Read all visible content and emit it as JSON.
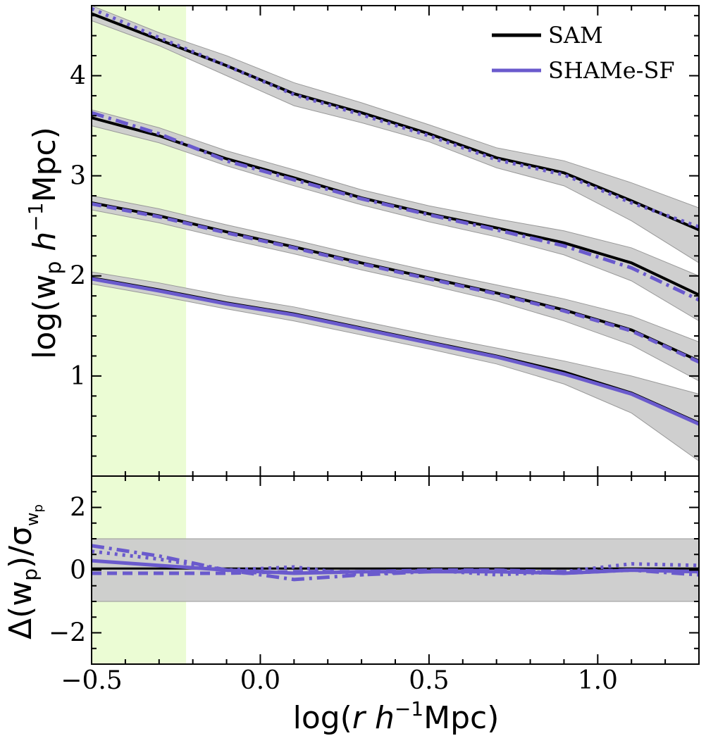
{
  "chart_data": [
    {
      "panel": "top",
      "type": "line",
      "ylabel": "log(w_p h^-1 Mpc)",
      "xlim": [
        -0.5,
        1.3
      ],
      "ylim": [
        0,
        4.7
      ],
      "yticks": [
        1,
        2,
        3,
        4
      ],
      "legend": {
        "placement": "top-right",
        "entries": [
          {
            "label": "SAM",
            "color": "#000000"
          },
          {
            "label": "SHAMe-SF",
            "color": "#6a5acd"
          }
        ]
      },
      "highlight_band_x": [
        -0.5,
        -0.22
      ],
      "x": [
        -0.5,
        -0.3,
        -0.1,
        0.1,
        0.3,
        0.5,
        0.7,
        0.9,
        1.1,
        1.3
      ],
      "series": [
        {
          "group": 1,
          "name": "SAM",
          "style": "solid",
          "values": [
            4.62,
            4.36,
            4.1,
            3.82,
            3.63,
            3.42,
            3.18,
            3.03,
            2.75,
            2.46
          ],
          "err_lo": [
            4.55,
            4.3,
            4.0,
            3.7,
            3.53,
            3.34,
            3.08,
            2.9,
            2.55,
            2.13
          ],
          "err_hi": [
            4.7,
            4.43,
            4.2,
            3.93,
            3.73,
            3.51,
            3.28,
            3.15,
            2.93,
            2.68
          ]
        },
        {
          "group": 1,
          "name": "SHAMe-SF",
          "style": "dotted",
          "values": [
            4.67,
            4.38,
            4.1,
            3.81,
            3.61,
            3.4,
            3.16,
            3.01,
            2.73,
            2.49
          ]
        },
        {
          "group": 2,
          "name": "SAM",
          "style": "solid",
          "values": [
            3.58,
            3.4,
            3.17,
            2.98,
            2.78,
            2.62,
            2.48,
            2.33,
            2.13,
            1.81
          ],
          "err_lo": [
            3.5,
            3.33,
            3.1,
            2.9,
            2.71,
            2.54,
            2.39,
            2.21,
            1.95,
            1.55
          ],
          "err_hi": [
            3.66,
            3.48,
            3.25,
            3.06,
            2.86,
            2.7,
            2.57,
            2.45,
            2.28,
            2.0
          ]
        },
        {
          "group": 2,
          "name": "SHAMe-SF",
          "style": "dashdot",
          "values": [
            3.63,
            3.42,
            3.15,
            2.96,
            2.77,
            2.61,
            2.46,
            2.3,
            2.08,
            1.76
          ]
        },
        {
          "group": 3,
          "name": "SAM",
          "style": "solid",
          "values": [
            2.73,
            2.6,
            2.44,
            2.29,
            2.13,
            1.98,
            1.83,
            1.66,
            1.46,
            1.15
          ],
          "err_lo": [
            2.66,
            2.53,
            2.37,
            2.22,
            2.06,
            1.91,
            1.75,
            1.55,
            1.31,
            0.95
          ],
          "err_hi": [
            2.8,
            2.67,
            2.51,
            2.36,
            2.2,
            2.05,
            1.91,
            1.77,
            1.6,
            1.34
          ]
        },
        {
          "group": 3,
          "name": "SHAMe-SF",
          "style": "dashed",
          "values": [
            2.72,
            2.59,
            2.43,
            2.28,
            2.12,
            1.97,
            1.82,
            1.65,
            1.45,
            1.14
          ]
        },
        {
          "group": 4,
          "name": "SAM",
          "style": "solid",
          "values": [
            1.98,
            1.86,
            1.73,
            1.62,
            1.48,
            1.34,
            1.2,
            1.04,
            0.83,
            0.53
          ],
          "err_lo": [
            1.92,
            1.8,
            1.67,
            1.55,
            1.41,
            1.27,
            1.12,
            0.92,
            0.63,
            0.15
          ],
          "err_hi": [
            2.04,
            1.93,
            1.8,
            1.69,
            1.55,
            1.41,
            1.28,
            1.15,
            1.0,
            0.82
          ]
        },
        {
          "group": 4,
          "name": "SHAMe-SF",
          "style": "solid",
          "values": [
            1.97,
            1.85,
            1.72,
            1.61,
            1.47,
            1.33,
            1.19,
            1.02,
            0.82,
            0.52
          ]
        }
      ]
    },
    {
      "panel": "bottom",
      "type": "line",
      "xlabel": "log(r h^-1 Mpc)",
      "ylabel": "Δ(w_p)/σ_wp",
      "xlim": [
        -0.5,
        1.3
      ],
      "ylim": [
        -3,
        3
      ],
      "xticks": [
        "−0.5",
        "0.0",
        "0.5",
        "1.0"
      ],
      "yticks": [
        "2",
        "0",
        "−2"
      ],
      "band_y": [
        -1,
        1
      ],
      "highlight_band_x": [
        -0.5,
        -0.22
      ],
      "x": [
        -0.5,
        -0.3,
        -0.1,
        0.1,
        0.3,
        0.5,
        0.7,
        0.9,
        1.1,
        1.3
      ],
      "series": [
        {
          "name": "SAM",
          "style": "solid",
          "values": [
            0.05,
            0.05,
            0.05,
            0.05,
            0.05,
            0.05,
            0.05,
            0.05,
            0.05,
            0.05
          ]
        },
        {
          "name": "SHAMe-SF",
          "style": "dotted",
          "values": [
            0.6,
            0.35,
            0.0,
            0.1,
            -0.15,
            0.0,
            -0.15,
            -0.05,
            0.2,
            0.15
          ]
        },
        {
          "name": "SHAMe-SF",
          "style": "dashdot",
          "values": [
            0.78,
            0.45,
            0.0,
            -0.3,
            -0.15,
            -0.05,
            0.0,
            -0.1,
            0.0,
            -0.15
          ]
        },
        {
          "name": "SHAMe-SF",
          "style": "dashed",
          "values": [
            -0.1,
            -0.1,
            -0.1,
            -0.05,
            -0.05,
            0.0,
            0.0,
            -0.05,
            0.0,
            -0.05
          ]
        },
        {
          "name": "SHAMe-SF",
          "style": "solid",
          "values": [
            0.3,
            0.15,
            0.0,
            -0.1,
            -0.05,
            -0.05,
            -0.05,
            -0.1,
            0.0,
            -0.05
          ]
        }
      ]
    }
  ],
  "colors": {
    "sam": "#000000",
    "shame": "#6a5acd",
    "band": "#cccccc",
    "highlight": "#ebfcd4"
  }
}
